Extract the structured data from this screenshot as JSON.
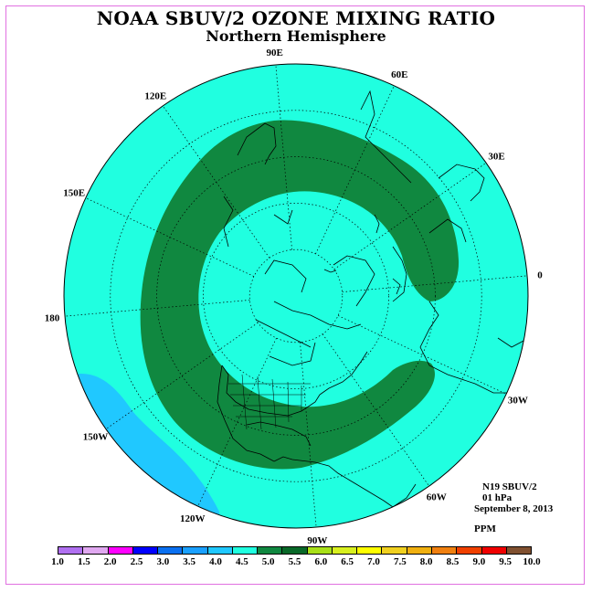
{
  "title": "NOAA SBUV/2 OZONE MIXING RATIO",
  "subtitle": "Northern Hemisphere",
  "info": {
    "satellite": "N19 SBUV/2",
    "level": "01 hPa",
    "date": "September 8, 2013",
    "units": "PPM"
  },
  "longitude_labels": [
    {
      "text": "90E",
      "lon": 90
    },
    {
      "text": "60E",
      "lon": 60
    },
    {
      "text": "30E",
      "lon": 30
    },
    {
      "text": "0",
      "lon": 0
    },
    {
      "text": "30W",
      "lon": -30
    },
    {
      "text": "60W",
      "lon": -60
    },
    {
      "text": "90W",
      "lon": -90
    },
    {
      "text": "120W",
      "lon": -120
    },
    {
      "text": "150W",
      "lon": -150
    },
    {
      "text": "180",
      "lon": 180
    },
    {
      "text": "150E",
      "lon": 150
    },
    {
      "text": "120E",
      "lon": 120
    }
  ],
  "colorbar": {
    "ticks": [
      "1.0",
      "1.5",
      "2.0",
      "2.5",
      "3.0",
      "3.5",
      "4.0",
      "4.5",
      "5.0",
      "5.5",
      "6.0",
      "6.5",
      "7.0",
      "7.5",
      "8.0",
      "8.5",
      "9.0",
      "9.5",
      "10.0"
    ],
    "colors": [
      "#b070f0",
      "#e0a8f0",
      "#ff00ff",
      "#0000ff",
      "#0a70f0",
      "#1aa0ff",
      "#20c8ff",
      "#20ffe0",
      "#108840",
      "#086828",
      "#a8e018",
      "#d8f020",
      "#ffff00",
      "#f0d020",
      "#f0b010",
      "#f08010",
      "#f04000",
      "#f00000",
      "#805030"
    ]
  },
  "map_colors": {
    "background": "#20ffe0",
    "high_band": "#108840",
    "low_region": "#20c8ff",
    "grid": "#000000",
    "frame": "#e070e0"
  }
}
